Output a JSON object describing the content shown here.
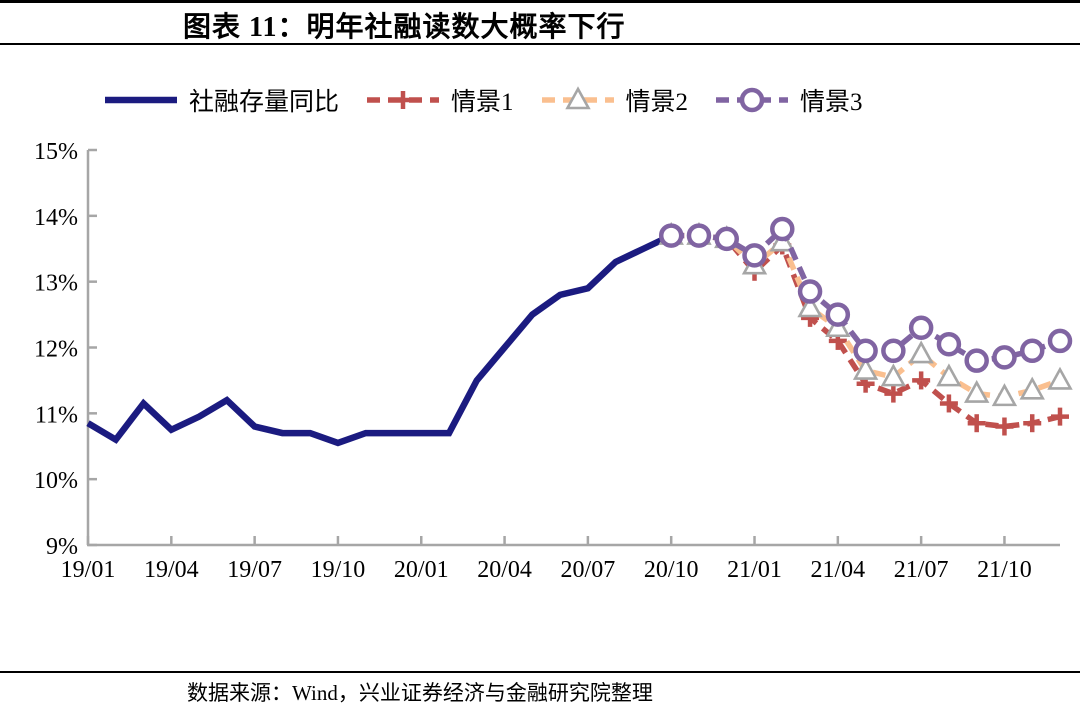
{
  "header": {
    "title": "图表 11：明年社融读数大概率下行"
  },
  "footer": {
    "source": "数据来源：Wind，兴业证券经济与金融研究院整理"
  },
  "colors": {
    "navy": "#1b1b80",
    "red": "#c0504d",
    "orange": "#fabf8f",
    "purple": "#8064a2",
    "marker_gray": "#a6a6a6",
    "axis_gray": "#a6a6a6",
    "rule_black": "#000000"
  },
  "chart_data": {
    "type": "line",
    "title": "图表 11：明年社融读数大概率下行",
    "xlabel": "",
    "ylabel": "",
    "ylim": [
      9,
      15
    ],
    "ytick_labels": [
      "9%",
      "10%",
      "11%",
      "12%",
      "13%",
      "14%",
      "15%"
    ],
    "xtick_every": 3,
    "grid": false,
    "legend_position": "top",
    "axis_color": "#a6a6a6",
    "categories": [
      "19/01",
      "19/02",
      "19/03",
      "19/04",
      "19/05",
      "19/06",
      "19/07",
      "19/08",
      "19/09",
      "19/10",
      "19/11",
      "19/12",
      "20/01",
      "20/02",
      "20/03",
      "20/04",
      "20/05",
      "20/06",
      "20/07",
      "20/08",
      "20/09",
      "20/10",
      "20/11",
      "20/12",
      "21/01",
      "21/02",
      "21/03",
      "21/04",
      "21/05",
      "21/06",
      "21/07",
      "21/08",
      "21/09",
      "21/10",
      "21/11",
      "21/12"
    ],
    "series": [
      {
        "name": "社融存量同比",
        "color": "#1b1b80",
        "style": "solid",
        "marker": "none",
        "marker_color": "#1b1b80",
        "start_index": 0,
        "values": [
          10.85,
          10.6,
          11.15,
          10.75,
          10.95,
          11.2,
          10.8,
          10.7,
          10.7,
          10.55,
          10.7,
          10.7,
          10.7,
          10.7,
          11.5,
          12.0,
          12.5,
          12.8,
          12.9,
          13.3,
          13.5,
          13.7
        ]
      },
      {
        "name": "情景1",
        "color": "#c0504d",
        "style": "dashed",
        "marker": "plus",
        "marker_color": "#c0504d",
        "start_index": 21,
        "values": [
          13.7,
          13.7,
          13.65,
          13.15,
          13.55,
          12.45,
          12.1,
          11.45,
          11.3,
          11.5,
          11.15,
          10.85,
          10.8,
          10.85,
          10.95
        ]
      },
      {
        "name": "情景2",
        "color": "#fabf8f",
        "style": "dashed",
        "marker": "triangle",
        "marker_color": "#a6a6a6",
        "start_index": 21,
        "values": [
          13.7,
          13.7,
          13.65,
          13.25,
          13.6,
          12.6,
          12.3,
          11.65,
          11.55,
          11.9,
          11.55,
          11.3,
          11.25,
          11.35,
          11.5
        ]
      },
      {
        "name": "情景3",
        "color": "#8064a2",
        "style": "dashed",
        "marker": "circle",
        "marker_color": "#8064a2",
        "start_index": 21,
        "values": [
          13.7,
          13.7,
          13.65,
          13.4,
          13.8,
          12.85,
          12.5,
          11.95,
          11.95,
          12.3,
          12.05,
          11.8,
          11.85,
          11.95,
          12.1
        ]
      }
    ]
  }
}
